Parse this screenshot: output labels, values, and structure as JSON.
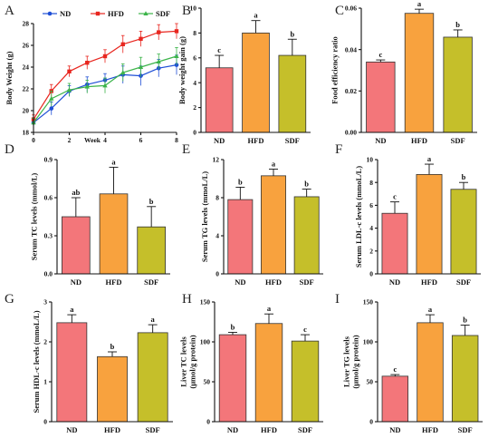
{
  "colors": {
    "ND": "#f3767a",
    "HFD": "#f8a23e",
    "SDF": "#c5bf2a",
    "line_ND": "#1f4fd6",
    "line_HFD": "#e8261f",
    "line_SDF": "#3cb44a"
  },
  "chart_data": [
    {
      "id": "A",
      "type": "line",
      "panel": "A",
      "xlabel": "Week",
      "ylabel": "Body Weight (g)",
      "xlim": [
        0,
        8
      ],
      "ylim": [
        18,
        28
      ],
      "xticks": [
        "0",
        "2",
        "4",
        "6",
        "8"
      ],
      "yticks": [
        "18",
        "20",
        "22",
        "24",
        "26",
        "28"
      ],
      "x": [
        0,
        1,
        2,
        3,
        4,
        5,
        6,
        7,
        8
      ],
      "legend_position": "top",
      "series": [
        {
          "name": "ND",
          "color": "#1f4fd6",
          "marker": "circle",
          "values": [
            18.9,
            20.2,
            21.8,
            22.4,
            22.8,
            23.3,
            23.2,
            23.9,
            24.2
          ],
          "errors": [
            0.4,
            0.6,
            0.5,
            0.7,
            0.6,
            0.8,
            0.9,
            0.8,
            0.9
          ]
        },
        {
          "name": "HFD",
          "color": "#e8261f",
          "marker": "square",
          "values": [
            19.2,
            21.8,
            23.6,
            24.4,
            25.0,
            26.1,
            26.6,
            27.2,
            27.3
          ],
          "errors": [
            0.4,
            0.6,
            0.5,
            0.6,
            0.6,
            0.8,
            0.7,
            0.7,
            0.7
          ]
        },
        {
          "name": "SDF",
          "color": "#3cb44a",
          "marker": "triangle",
          "values": [
            18.9,
            21.1,
            21.9,
            22.2,
            22.3,
            23.5,
            24.0,
            24.5,
            25.0
          ],
          "errors": [
            0.4,
            0.7,
            0.6,
            0.6,
            0.7,
            0.8,
            0.9,
            0.7,
            0.8
          ]
        }
      ]
    },
    {
      "id": "B",
      "type": "bar",
      "panel": "B",
      "ylabel": "Body weight gain (g)",
      "ylim": [
        0,
        10
      ],
      "yticks": [
        "0",
        "2",
        "4",
        "6",
        "8",
        "10"
      ],
      "categories": [
        "ND",
        "HFD",
        "SDF"
      ],
      "values": [
        5.2,
        8.0,
        6.2
      ],
      "errors": [
        1.0,
        1.0,
        1.3
      ],
      "labels": [
        "c",
        "a",
        "b"
      ]
    },
    {
      "id": "C",
      "type": "bar",
      "panel": "C",
      "ylabel": "Food efficiency ratio",
      "ylim": [
        0,
        0.06
      ],
      "yticks": [
        "0.00",
        "0.02",
        "0.04",
        "0.06"
      ],
      "categories": [
        "ND",
        "HFD",
        "SDF"
      ],
      "values": [
        0.034,
        0.0575,
        0.046
      ],
      "errors": [
        0.001,
        0.002,
        0.0035
      ],
      "labels": [
        "c",
        "a",
        "b"
      ]
    },
    {
      "id": "D",
      "type": "bar",
      "panel": "D",
      "ylabel": "Serum TC levels (mmol/L)",
      "ylim": [
        0,
        0.9
      ],
      "yticks": [
        "0.0",
        "0.3",
        "0.6",
        "0.9"
      ],
      "categories": [
        "ND",
        "HFD",
        "SDF"
      ],
      "values": [
        0.45,
        0.63,
        0.37
      ],
      "errors": [
        0.15,
        0.21,
        0.16
      ],
      "labels": [
        "ab",
        "a",
        "b"
      ]
    },
    {
      "id": "E",
      "type": "bar",
      "panel": "E",
      "ylabel": "Serum TG levels (mmoL/L)",
      "ylim": [
        0,
        12
      ],
      "yticks": [
        "0",
        "4",
        "8",
        "12"
      ],
      "categories": [
        "ND",
        "HFD",
        "SDF"
      ],
      "values": [
        7.8,
        10.3,
        8.1
      ],
      "errors": [
        1.3,
        0.7,
        0.8
      ],
      "labels": [
        "b",
        "a",
        "b"
      ]
    },
    {
      "id": "F",
      "type": "bar",
      "panel": "F",
      "ylabel": "Serum LDL-c levels (mmoL/L)",
      "ylim": [
        0,
        10
      ],
      "yticks": [
        "0",
        "2",
        "4",
        "6",
        "8",
        "10"
      ],
      "categories": [
        "ND",
        "HFD",
        "SDF"
      ],
      "values": [
        5.3,
        8.7,
        7.4
      ],
      "errors": [
        1.0,
        0.9,
        0.6
      ],
      "labels": [
        "c",
        "a",
        "b"
      ]
    },
    {
      "id": "G",
      "type": "bar",
      "panel": "G",
      "ylabel": "Serum HDL-c levels (mmoL/L)",
      "ylim": [
        0,
        3
      ],
      "yticks": [
        "0",
        "1",
        "2",
        "3"
      ],
      "categories": [
        "ND",
        "HFD",
        "SDF"
      ],
      "values": [
        2.48,
        1.63,
        2.23
      ],
      "errors": [
        0.2,
        0.12,
        0.2
      ],
      "labels": [
        "a",
        "b",
        "a"
      ]
    },
    {
      "id": "H",
      "type": "bar",
      "panel": "H",
      "ylabel": "Liver TC levels",
      "ylabel2": "(μmol/g protein)",
      "ylim": [
        0,
        150
      ],
      "yticks": [
        "0",
        "50",
        "100",
        "150"
      ],
      "categories": [
        "ND",
        "HFD",
        "SDF"
      ],
      "values": [
        109,
        123,
        101
      ],
      "errors": [
        3,
        12,
        8
      ],
      "labels": [
        "b",
        "a",
        "c"
      ]
    },
    {
      "id": "I",
      "type": "bar",
      "panel": "I",
      "ylabel": "Liver TG levels",
      "ylabel2": "(μmol/g protein)",
      "ylim": [
        0,
        150
      ],
      "yticks": [
        "0",
        "50",
        "100",
        "150"
      ],
      "categories": [
        "ND",
        "HFD",
        "SDF"
      ],
      "values": [
        57,
        124,
        108
      ],
      "errors": [
        2,
        10,
        13
      ],
      "labels": [
        "c",
        "a",
        "b"
      ]
    }
  ]
}
